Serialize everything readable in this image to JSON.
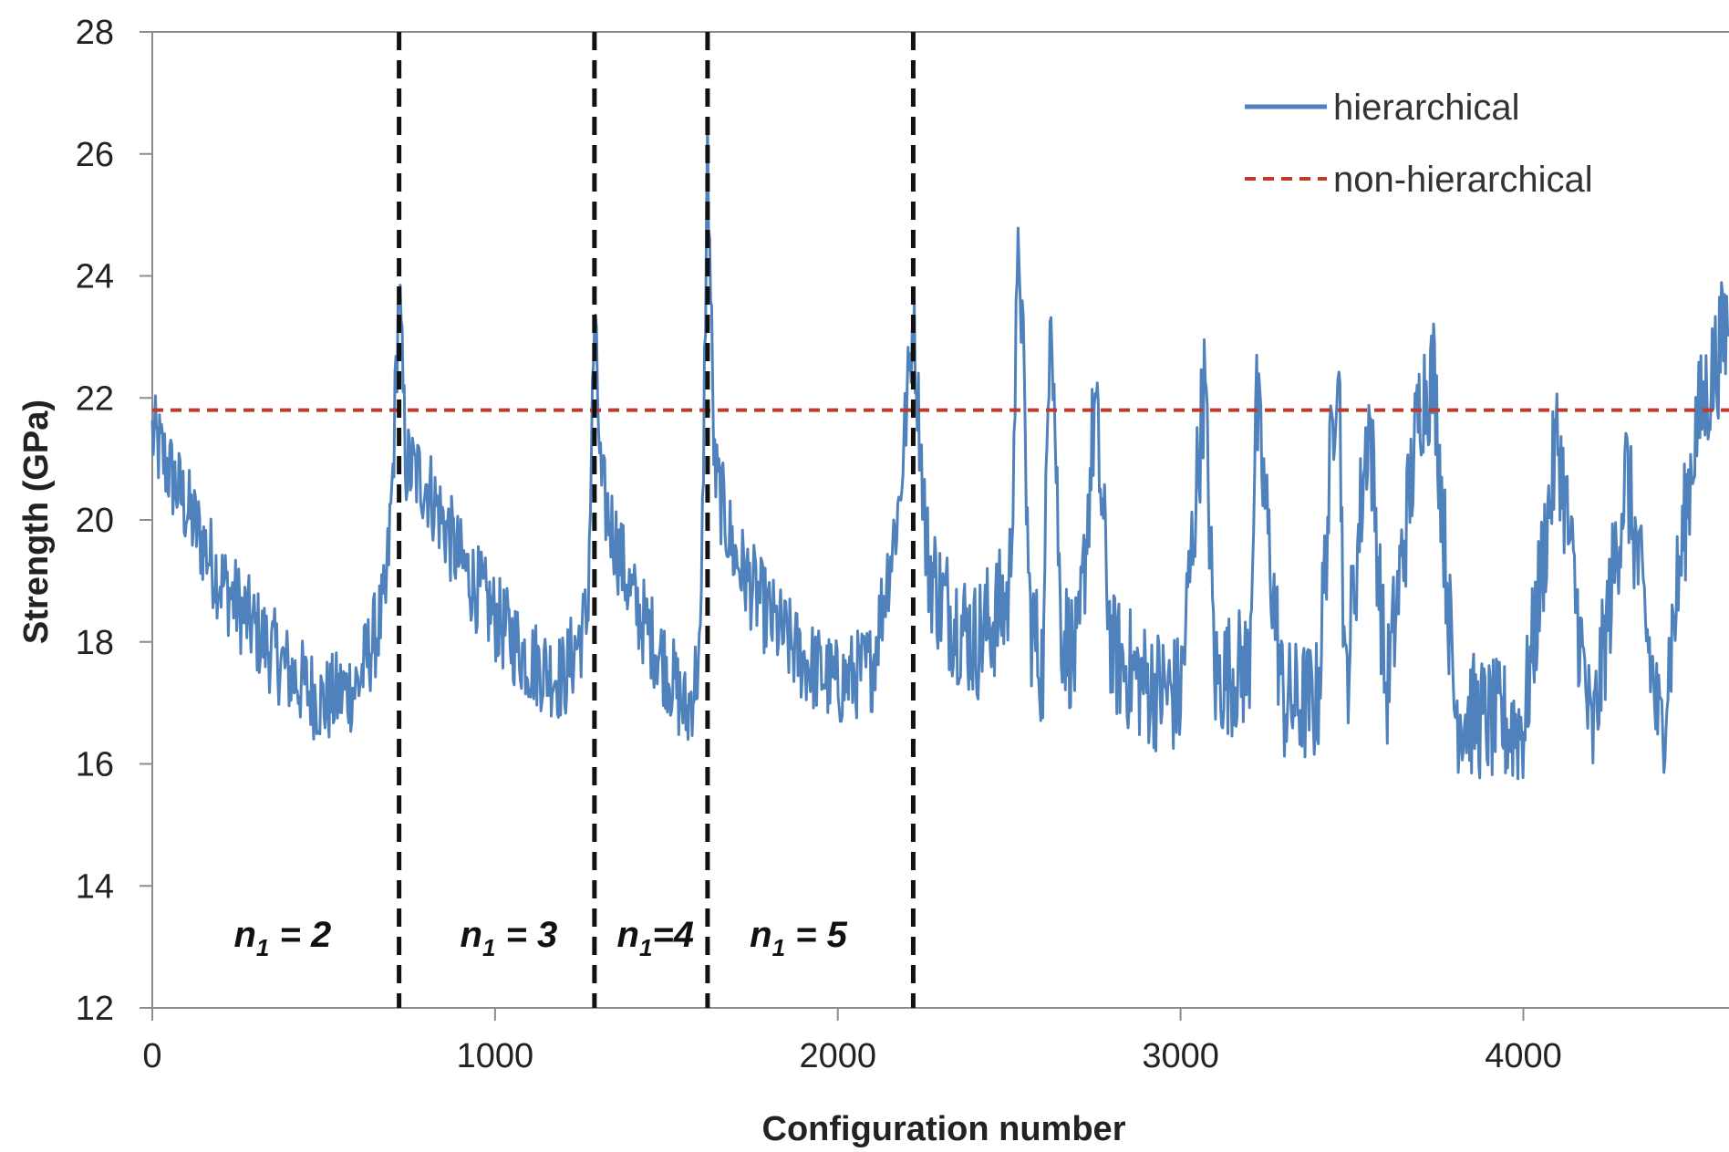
{
  "chart_data": {
    "type": "line",
    "title": "",
    "xlabel": "Configuration number",
    "ylabel": "Strength (GPa)",
    "xlim": [
      0,
      4600
    ],
    "ylim": [
      12,
      28
    ],
    "x_ticks": [
      "0",
      "1000",
      "2000",
      "3000",
      "4000"
    ],
    "y_ticks": [
      "12",
      "14",
      "16",
      "18",
      "20",
      "22",
      "24",
      "26",
      "28"
    ],
    "grid": false,
    "legend_position": "top-right",
    "series": [
      {
        "name": "hierarchical",
        "color": "#4f81bd",
        "style": "solid",
        "x": [
          0,
          100,
          200,
          300,
          400,
          500,
          600,
          680,
          700,
          720,
          740,
          800,
          900,
          1000,
          1100,
          1200,
          1270,
          1290,
          1310,
          1350,
          1400,
          1500,
          1560,
          1600,
          1620,
          1640,
          1660,
          1700,
          1800,
          1900,
          2000,
          2100,
          2180,
          2220,
          2260,
          2300,
          2400,
          2500,
          2530,
          2560,
          2600,
          2620,
          2650,
          2700,
          2750,
          2800,
          2900,
          3000,
          3070,
          3100,
          3200,
          3220,
          3300,
          3400,
          3460,
          3480,
          3550,
          3600,
          3700,
          3740,
          3800,
          3900,
          4000,
          4100,
          4200,
          4300,
          4400,
          4500,
          4600
        ],
        "y": [
          21.4,
          20.2,
          19.0,
          18.2,
          17.5,
          17.0,
          17.3,
          18.6,
          20.5,
          23.8,
          20.9,
          20.6,
          19.3,
          18.4,
          17.7,
          17.4,
          18.4,
          23.3,
          20.5,
          19.7,
          18.7,
          17.6,
          16.8,
          17.8,
          26.1,
          20.8,
          20.3,
          19.4,
          18.4,
          17.7,
          17.3,
          17.6,
          20.3,
          23.3,
          19.4,
          18.7,
          18.0,
          18.7,
          24.7,
          18.4,
          17.5,
          24.4,
          18.3,
          17.6,
          21.9,
          17.8,
          17.3,
          17.1,
          22.3,
          17.4,
          17.6,
          21.9,
          17.0,
          17.0,
          23.2,
          17.1,
          21.8,
          17.1,
          22.0,
          22.4,
          16.9,
          16.7,
          16.6,
          21.4,
          16.3,
          20.8,
          16.4,
          21.4,
          23.3
        ]
      },
      {
        "name": "non-hierarchical",
        "color": "#c0392b",
        "style": "dashed",
        "value": 21.8
      }
    ],
    "dividers": [
      720,
      1290,
      1620,
      2220
    ],
    "region_labels": [
      {
        "text": "n",
        "sub": "1",
        "rest": " = 2",
        "x": 380
      },
      {
        "text": "n",
        "sub": "1",
        "rest": " = 3",
        "x": 1040
      },
      {
        "text": "n",
        "sub": "1",
        "rest": "=4",
        "x": 1468
      },
      {
        "text": "n",
        "sub": "1",
        "rest": " = 5",
        "x": 1885
      }
    ],
    "region_label_y": 13.0
  }
}
